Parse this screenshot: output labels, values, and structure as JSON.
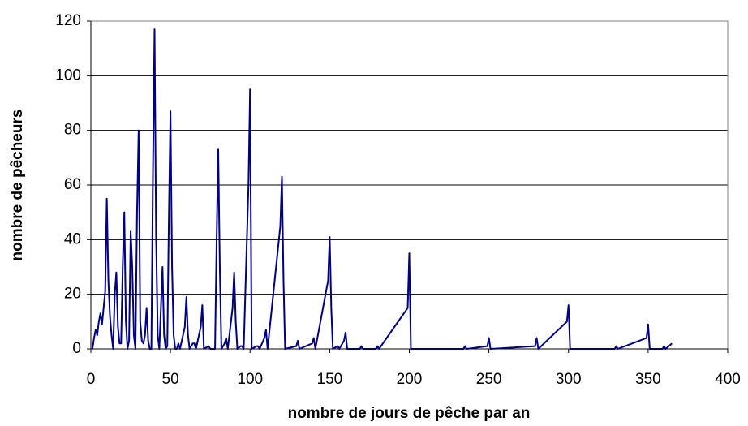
{
  "chart_data": {
    "type": "line",
    "xlabel": "nombre de jours de pêche par an",
    "ylabel": "nombre de pêcheurs",
    "xlim": [
      0,
      400
    ],
    "xticks": [
      0,
      50,
      100,
      150,
      200,
      250,
      300,
      350,
      400
    ],
    "ylim": [
      0,
      120
    ],
    "yticks": [
      0,
      20,
      40,
      60,
      80,
      100,
      120
    ],
    "grid": true,
    "x": [
      1,
      2,
      3,
      4,
      5,
      6,
      7,
      8,
      9,
      10,
      11,
      12,
      13,
      14,
      15,
      16,
      17,
      18,
      19,
      20,
      21,
      22,
      23,
      24,
      25,
      26,
      27,
      28,
      29,
      30,
      31,
      32,
      33,
      34,
      35,
      36,
      37,
      38,
      39,
      40,
      41,
      42,
      43,
      44,
      45,
      46,
      47,
      48,
      49,
      50,
      51,
      52,
      53,
      54,
      55,
      56,
      59,
      60,
      61,
      62,
      64,
      65,
      66,
      69,
      70,
      71,
      74,
      75,
      78,
      79,
      80,
      81,
      82,
      84,
      85,
      86,
      89,
      90,
      91,
      92,
      94,
      95,
      96,
      99,
      100,
      101,
      104,
      105,
      106,
      109,
      110,
      111,
      119,
      120,
      121,
      122,
      129,
      130,
      131,
      139,
      140,
      141,
      149,
      150,
      151,
      152,
      155,
      156,
      159,
      160,
      161,
      169,
      170,
      171,
      179,
      180,
      181,
      199,
      200,
      201,
      234,
      235,
      236,
      249,
      250,
      251,
      279,
      280,
      281,
      299,
      300,
      301,
      329,
      330,
      331,
      349,
      350,
      351,
      359,
      360,
      361,
      365
    ],
    "series": [
      {
        "name": "pêcheurs",
        "color": "#000080",
        "values": [
          0,
          4,
          7,
          5,
          10,
          13,
          9,
          15,
          21,
          55,
          25,
          12,
          5,
          0,
          20,
          28,
          8,
          2,
          2,
          30,
          50,
          10,
          0,
          3,
          43,
          30,
          5,
          0,
          50,
          80,
          10,
          3,
          2,
          5,
          15,
          3,
          0,
          0,
          65,
          117,
          40,
          5,
          0,
          15,
          30,
          5,
          0,
          1,
          48,
          87,
          30,
          5,
          0,
          0,
          2,
          0,
          8,
          19,
          5,
          0,
          2,
          2,
          0,
          8,
          16,
          0,
          1,
          0,
          0,
          40,
          73,
          30,
          0,
          2,
          4,
          0,
          15,
          28,
          10,
          0,
          1,
          1,
          0,
          60,
          95,
          0,
          1,
          1,
          0,
          4,
          7,
          0,
          45,
          63,
          25,
          0,
          1,
          3,
          0,
          2,
          4,
          0,
          25,
          41,
          15,
          0,
          1,
          0,
          3,
          6,
          0,
          0,
          1,
          0,
          0,
          1,
          0,
          15,
          35,
          0,
          0,
          1,
          0,
          1,
          4,
          0,
          1,
          4,
          0,
          10,
          16,
          0,
          0,
          1,
          0,
          4,
          9,
          0,
          0,
          1,
          0,
          2
        ]
      }
    ]
  }
}
